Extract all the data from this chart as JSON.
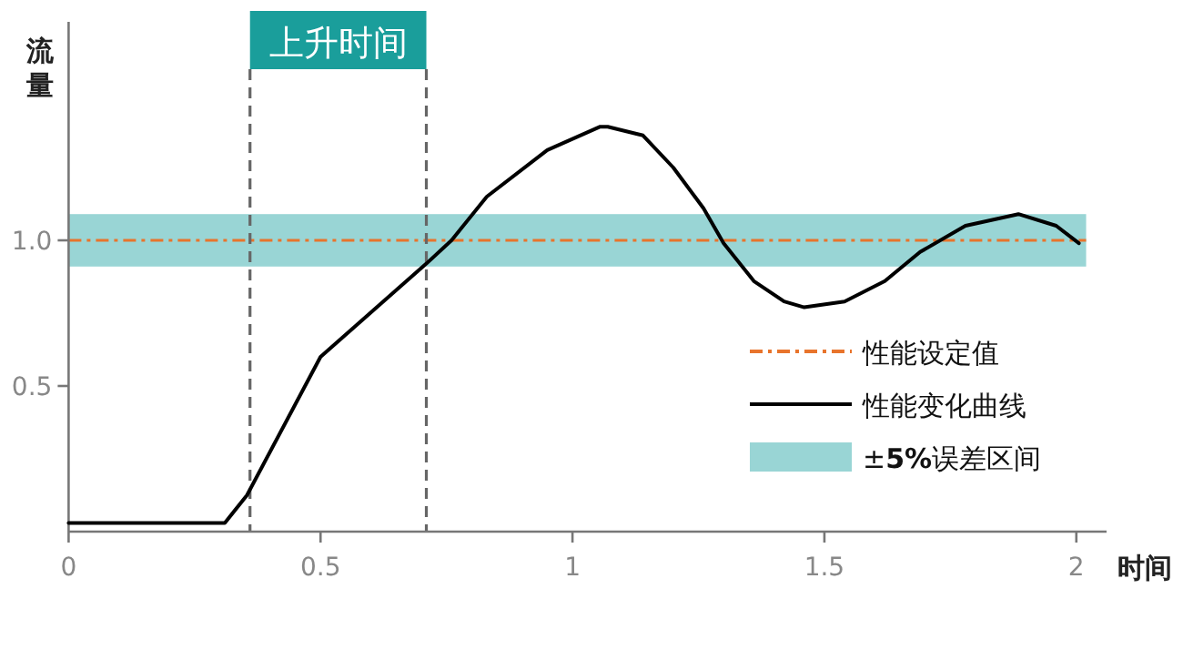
{
  "chart_data": {
    "type": "line",
    "xlabel": "时间",
    "ylabel": "流量",
    "xlim": [
      0,
      2.06
    ],
    "ylim": [
      0,
      1.75
    ],
    "xticks": [
      0,
      0.5,
      1,
      1.5,
      2
    ],
    "yticks": [
      {
        "value": 0.5,
        "label": "0.5"
      },
      {
        "value": 1,
        "label": "1.0"
      }
    ],
    "series": [
      {
        "name": "性能变化曲线",
        "color": "#000000",
        "x": [
          0,
          0.31,
          0.354,
          0.5,
          0.71,
          0.76,
          0.83,
          0.95,
          1.055,
          1.07,
          1.14,
          1.2,
          1.26,
          1.3,
          1.36,
          1.42,
          1.46,
          1.54,
          1.62,
          1.69,
          1.78,
          1.885,
          1.96,
          2.005
        ],
        "values": [
          0.03,
          0.03,
          0.125,
          0.6,
          0.92,
          1.0,
          1.15,
          1.31,
          1.39,
          1.39,
          1.36,
          1.25,
          1.11,
          0.99,
          0.86,
          0.79,
          0.77,
          0.79,
          0.86,
          0.96,
          1.05,
          1.09,
          1.05,
          0.99
        ]
      }
    ],
    "ref_lines": [
      {
        "axis": "y",
        "value": 1,
        "label": "性能设定值",
        "color": "#e8742c",
        "line_style": "dashdot"
      },
      {
        "axis": "x",
        "value": 0.36,
        "color": "#666666",
        "line_style": "dashed"
      },
      {
        "axis": "x",
        "value": 0.71,
        "color": "#666666",
        "line_style": "dashed"
      }
    ],
    "bands": [
      {
        "axis": "y",
        "from": 0.91,
        "to": 1.09,
        "label": "±**5%**误差区间",
        "color": "#99d5d5"
      }
    ],
    "annotations": [
      "上升时间"
    ],
    "legend": "right",
    "marker": "none",
    "line_style": "solid"
  }
}
